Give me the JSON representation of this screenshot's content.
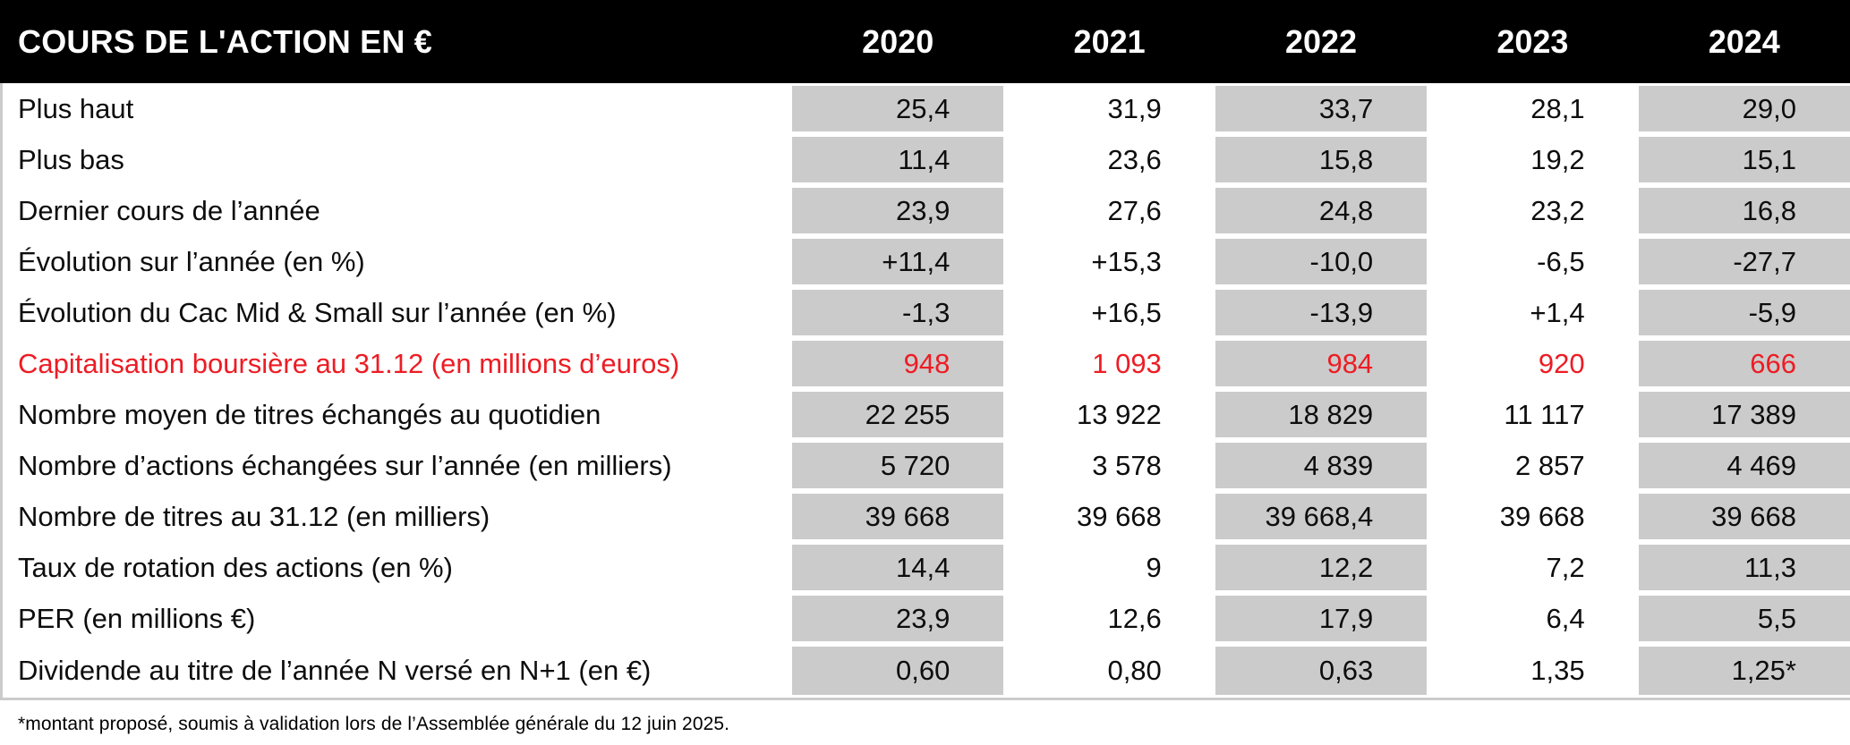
{
  "header": {
    "title": "COURS DE L'ACTION EN €",
    "years": [
      "2020",
      "2021",
      "2022",
      "2023",
      "2024"
    ]
  },
  "rows": [
    {
      "label": "Plus haut",
      "red": false,
      "values": [
        "25,4",
        "31,9",
        "33,7",
        "28,1",
        "29,0"
      ]
    },
    {
      "label": "Plus bas",
      "red": false,
      "values": [
        "11,4",
        "23,6",
        "15,8",
        "19,2",
        "15,1"
      ]
    },
    {
      "label": "Dernier cours de l’année",
      "red": false,
      "values": [
        "23,9",
        "27,6",
        "24,8",
        "23,2",
        "16,8"
      ]
    },
    {
      "label": "Évolution sur l’année (en %)",
      "red": false,
      "values": [
        "+11,4",
        "+15,3",
        "-10,0",
        "-6,5",
        "-27,7"
      ]
    },
    {
      "label": "Évolution du Cac Mid & Small sur l’année (en %)",
      "red": false,
      "values": [
        "-1,3",
        "+16,5",
        "-13,9",
        "+1,4",
        "-5,9"
      ]
    },
    {
      "label": "Capitalisation boursière au 31.12 (en millions d’euros)",
      "red": true,
      "values": [
        "948",
        "1 093",
        "984",
        "920",
        "666"
      ]
    },
    {
      "label": "Nombre moyen de titres échangés au quotidien",
      "red": false,
      "values": [
        "22 255",
        "13 922",
        "18 829",
        "11 117",
        "17 389"
      ]
    },
    {
      "label": "Nombre d’actions échangées sur l’année (en milliers)",
      "red": false,
      "values": [
        "5 720",
        "3 578",
        "4 839",
        "2 857",
        "4 469"
      ]
    },
    {
      "label": "Nombre de titres au 31.12 (en milliers)",
      "red": false,
      "values": [
        "39 668",
        "39 668",
        "39 668,4",
        "39 668",
        "39 668"
      ]
    },
    {
      "label": "Taux de rotation des actions (en %)",
      "red": false,
      "values": [
        "14,4",
        "9",
        "12,2",
        "7,2",
        "11,3"
      ]
    },
    {
      "label": "PER (en millions €)",
      "red": false,
      "values": [
        "23,9",
        "12,6",
        "17,9",
        "6,4",
        "5,5"
      ]
    },
    {
      "label": "Dividende au titre de l’année N versé en N+1 (en €)",
      "red": false,
      "values": [
        "0,60",
        "0,80",
        "0,63",
        "1,35",
        "1,25*"
      ]
    }
  ],
  "footnote": "*montant proposé, soumis à validation lors de l’Assemblée générale du 12 juin 2025.",
  "colors": {
    "header_bg": "#000000",
    "header_text": "#ffffff",
    "cell_gray": "#cbcbcb",
    "highlight_red": "#ed1c24",
    "body_text": "#0d0d0d"
  }
}
